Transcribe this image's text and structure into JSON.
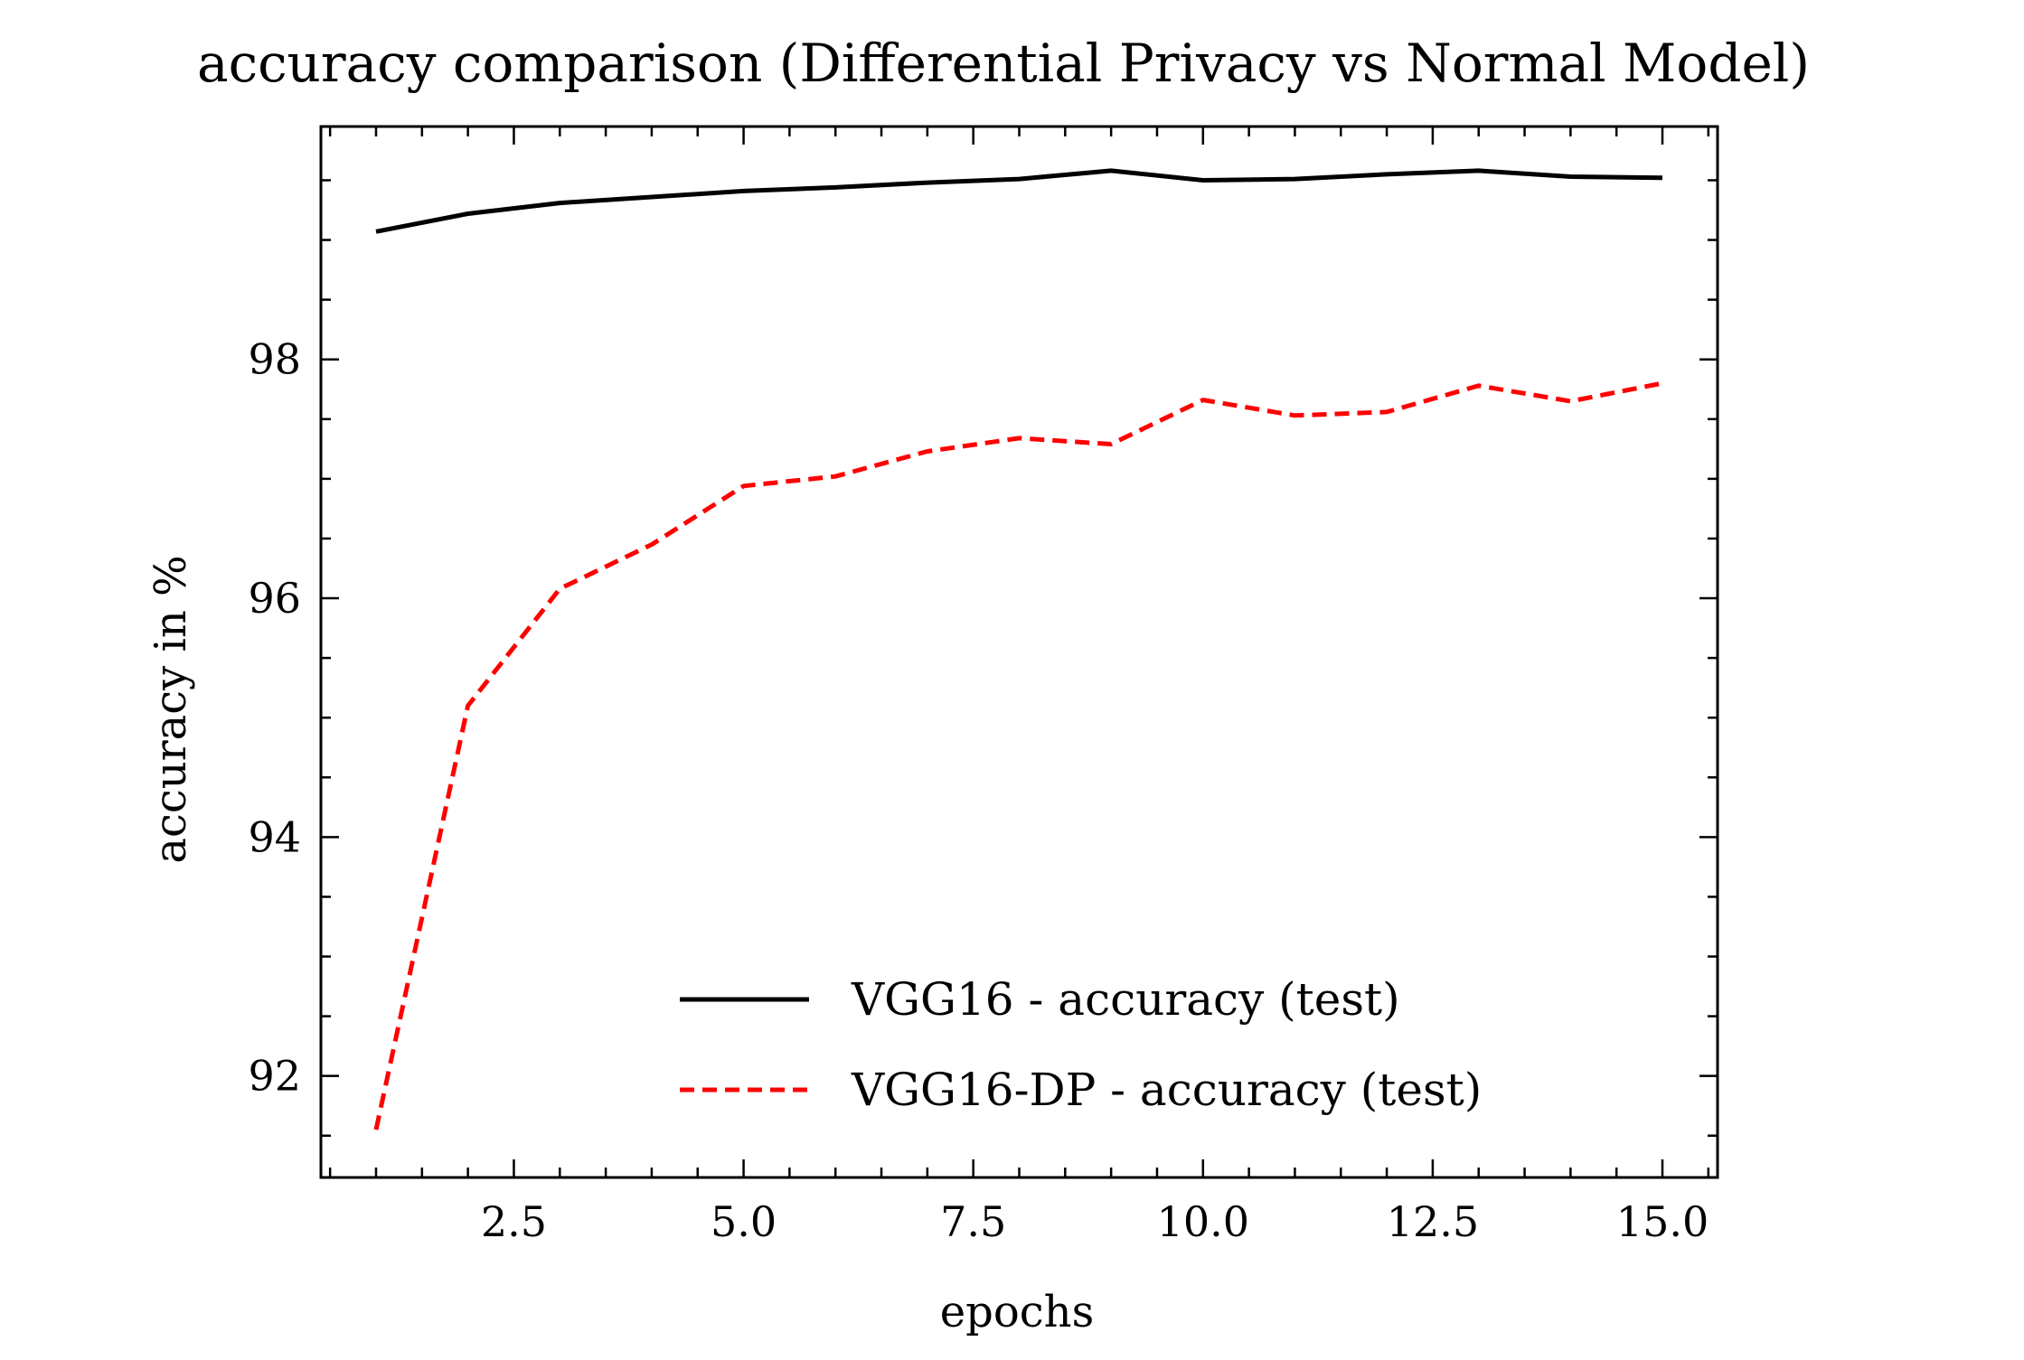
{
  "chart_data": {
    "type": "line",
    "title": "accuracy comparison (Differential Privacy vs Normal Model)",
    "xlabel": "epochs",
    "ylabel": "accuracy in %",
    "xlim": [
      0.4,
      15.6
    ],
    "ylim": [
      91.15,
      99.95
    ],
    "x_ticks": [
      2.5,
      5.0,
      7.5,
      10.0,
      12.5,
      15.0
    ],
    "x_tick_labels": [
      "2.5",
      "5.0",
      "7.5",
      "10.0",
      "12.5",
      "15.0"
    ],
    "x_minor_step": 0.5,
    "y_ticks": [
      92,
      94,
      96,
      98
    ],
    "y_tick_labels": [
      "92",
      "94",
      "96",
      "98"
    ],
    "y_minor_step": 0.5,
    "grid": false,
    "legend_position": "lower-right",
    "x": [
      1,
      2,
      3,
      4,
      5,
      6,
      7,
      8,
      9,
      10,
      11,
      12,
      13,
      14,
      15
    ],
    "series": [
      {
        "name": "VGG16 - accuracy (test)",
        "color": "#000000",
        "style": "solid",
        "values": [
          99.07,
          99.22,
          99.31,
          99.36,
          99.41,
          99.44,
          99.48,
          99.51,
          99.58,
          99.5,
          99.51,
          99.55,
          99.58,
          99.53,
          99.52
        ]
      },
      {
        "name": "VGG16-DP - accuracy (test)",
        "color": "#ff0000",
        "style": "dashed",
        "values": [
          91.55,
          95.1,
          96.08,
          96.45,
          96.94,
          97.02,
          97.23,
          97.34,
          97.29,
          97.66,
          97.53,
          97.56,
          97.78,
          97.65,
          97.8
        ]
      }
    ]
  }
}
